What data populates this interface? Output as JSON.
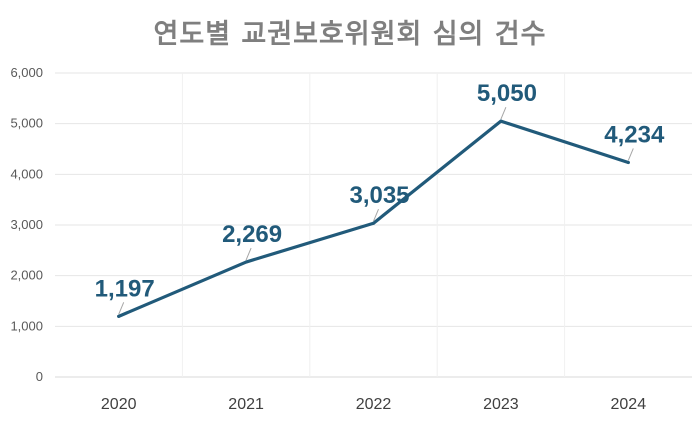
{
  "chart_data": {
    "type": "line",
    "title": "연도별 교권보호위원회 심의 건수",
    "categories": [
      "2020",
      "2021",
      "2022",
      "2023",
      "2024"
    ],
    "series": [
      {
        "values": [
          1197,
          2269,
          3035,
          5050,
          4234
        ],
        "labels": [
          "1,197",
          "2,269",
          "3,035",
          "5,050",
          "4,234"
        ]
      }
    ],
    "yticks": [
      "0",
      "1,000",
      "2,000",
      "3,000",
      "4,000",
      "5,000",
      "6,000"
    ],
    "ylim": [
      0,
      6000
    ],
    "grid": true,
    "colors": {
      "line": "#215a7a",
      "label": "#215a7a",
      "grid": "#e6e6e6",
      "leader": "#a6a6a6"
    }
  }
}
